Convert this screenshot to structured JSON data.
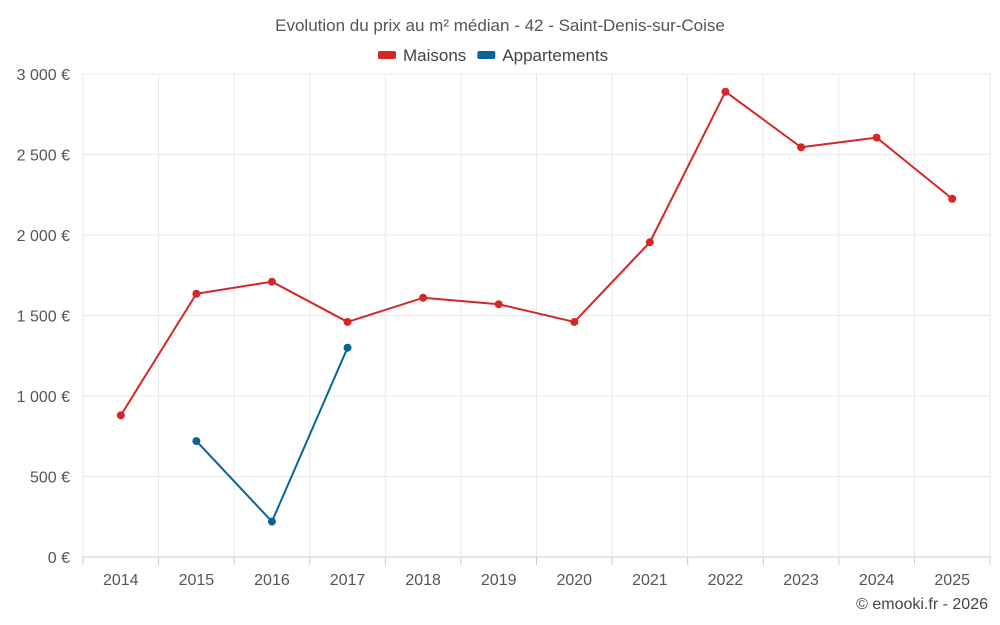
{
  "chart_data": {
    "type": "line",
    "title": "Evolution du prix au m² médian - 42 - Saint-Denis-sur-Coise",
    "categories": [
      "2014",
      "2015",
      "2016",
      "2017",
      "2018",
      "2019",
      "2020",
      "2021",
      "2022",
      "2023",
      "2024",
      "2025"
    ],
    "series": [
      {
        "name": "Maisons",
        "color": "#d62728",
        "values": [
          880,
          1635,
          1710,
          1460,
          1610,
          1570,
          1460,
          1955,
          2890,
          2545,
          2605,
          2225
        ]
      },
      {
        "name": "Appartements",
        "color": "#0a6496",
        "values": [
          null,
          720,
          220,
          1300,
          null,
          null,
          null,
          null,
          null,
          null,
          null,
          null
        ]
      }
    ],
    "ylim": [
      0,
      3000
    ],
    "yticks": [
      0,
      500,
      1000,
      1500,
      2000,
      2500,
      3000
    ],
    "ytick_labels": [
      "0 €",
      "500 €",
      "1 000 €",
      "1 500 €",
      "2 000 €",
      "2 500 €",
      "3 000 €"
    ],
    "xlabel": "",
    "ylabel": "",
    "grid": true,
    "legend_position": "top-center"
  },
  "credit": "© emooki.fr - 2026"
}
